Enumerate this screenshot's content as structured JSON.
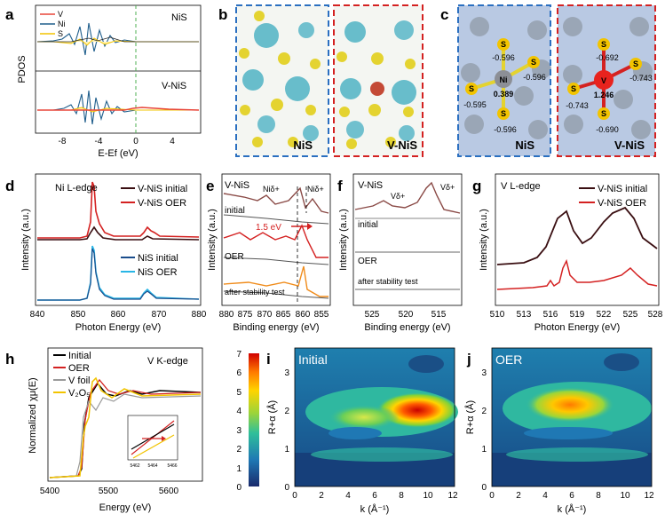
{
  "panels": {
    "a": {
      "label": "a",
      "legend": [
        "V",
        "Ni",
        "S"
      ],
      "top_title": "NiS",
      "bottom_title": "V-NiS",
      "ylabel": "PDOS",
      "xlabel": "E-Ef (eV)",
      "xticks": [
        "-8",
        "-4",
        "0",
        "4"
      ]
    },
    "b": {
      "label": "b",
      "left_title": "NiS",
      "right_title": "V-NiS"
    },
    "c": {
      "label": "c",
      "left_title": "NiS",
      "right_title": "V-NiS",
      "left_atoms": [
        {
          "el": "S",
          "charge": "-0.596"
        },
        {
          "el": "S",
          "charge": "-0.596"
        },
        {
          "el": "Ni",
          "charge": "0.389"
        },
        {
          "el": "S",
          "charge": "-0.595"
        },
        {
          "el": "S",
          "charge": "-0.596"
        }
      ],
      "right_atoms": [
        {
          "el": "S",
          "charge": "-0.692"
        },
        {
          "el": "S",
          "charge": "-0.743"
        },
        {
          "el": "V",
          "charge": "1.246"
        },
        {
          "el": "S",
          "charge": "-0.743"
        },
        {
          "el": "S",
          "charge": "-0.690"
        }
      ]
    },
    "d": {
      "label": "d",
      "edge": "Ni L-edge",
      "legend": [
        "V-NiS initial",
        "V-NiS OER",
        "NiS initial",
        "NiS OER"
      ],
      "ylabel": "Intensity (a.u.)",
      "xlabel": "Photon Energy (eV)",
      "xticks": [
        "840",
        "850",
        "860",
        "870",
        "880"
      ]
    },
    "e": {
      "label": "e",
      "title": "V-NiS",
      "ni3": "Niδ+",
      "ni2": "Niδ+",
      "shift": "1.5 eV",
      "initial": "initial",
      "oer": "OER",
      "stab": "after stability test",
      "ylabel": "Intensity (a.u.)",
      "xlabel": "Binding energy (eV)",
      "xticks": [
        "880",
        "875",
        "870",
        "865",
        "860",
        "855"
      ]
    },
    "f": {
      "label": "f",
      "title": "V-NiS",
      "v1": "Vδ+",
      "v2": "Vδ+",
      "initial": "initial",
      "oer": "OER",
      "stab": "after stability test",
      "ylabel": "Intensity (a.u.)",
      "xlabel": "Binding energy (eV)",
      "xticks": [
        "525",
        "520",
        "515"
      ]
    },
    "g": {
      "label": "g",
      "edge": "V L-edge",
      "legend": [
        "V-NiS initial",
        "V-NiS OER"
      ],
      "ylabel": "Intensity (a.u.)",
      "xlabel": "Photon Energy (eV)",
      "xticks": [
        "510",
        "513",
        "516",
        "519",
        "522",
        "525",
        "528"
      ]
    },
    "h": {
      "label": "h",
      "edge": "V K-edge",
      "legend": [
        "Initial",
        "OER",
        "V foil",
        "V₂O₅"
      ],
      "ylabel": "Normalized χμ(E)",
      "xlabel": "Energy (eV)",
      "xticks": [
        "5400",
        "5500",
        "5600"
      ],
      "inset_ticks": [
        "5462",
        "5464",
        "5466"
      ]
    },
    "i": {
      "label": "i",
      "title": "Initial",
      "ylabel": "R+α (Å)",
      "xlabel": "k (Å⁻¹)",
      "xticks": [
        "0",
        "2",
        "4",
        "6",
        "8",
        "10",
        "12"
      ],
      "yticks": [
        "0",
        "1",
        "2",
        "3"
      ],
      "cbar_ticks": [
        "0",
        "1",
        "2",
        "3",
        "4",
        "5",
        "6",
        "7"
      ]
    },
    "j": {
      "label": "j",
      "title": "OER",
      "ylabel": "R+α (Å)",
      "xlabel": "k (Å⁻¹)",
      "xticks": [
        "0",
        "2",
        "4",
        "6",
        "8",
        "10",
        "12"
      ],
      "yticks": [
        "0",
        "1",
        "2",
        "3"
      ]
    }
  },
  "colors": {
    "v": "#e8463a",
    "ni": "#1f5e8c",
    "s": "#f2c400",
    "red": "#d42121",
    "darkred": "#3a0f12",
    "blue": "#1a4d8c",
    "cyan": "#29b6e6",
    "orange": "#f08c1c",
    "brown": "#8a4a46",
    "grey": "#9a9a9a"
  }
}
